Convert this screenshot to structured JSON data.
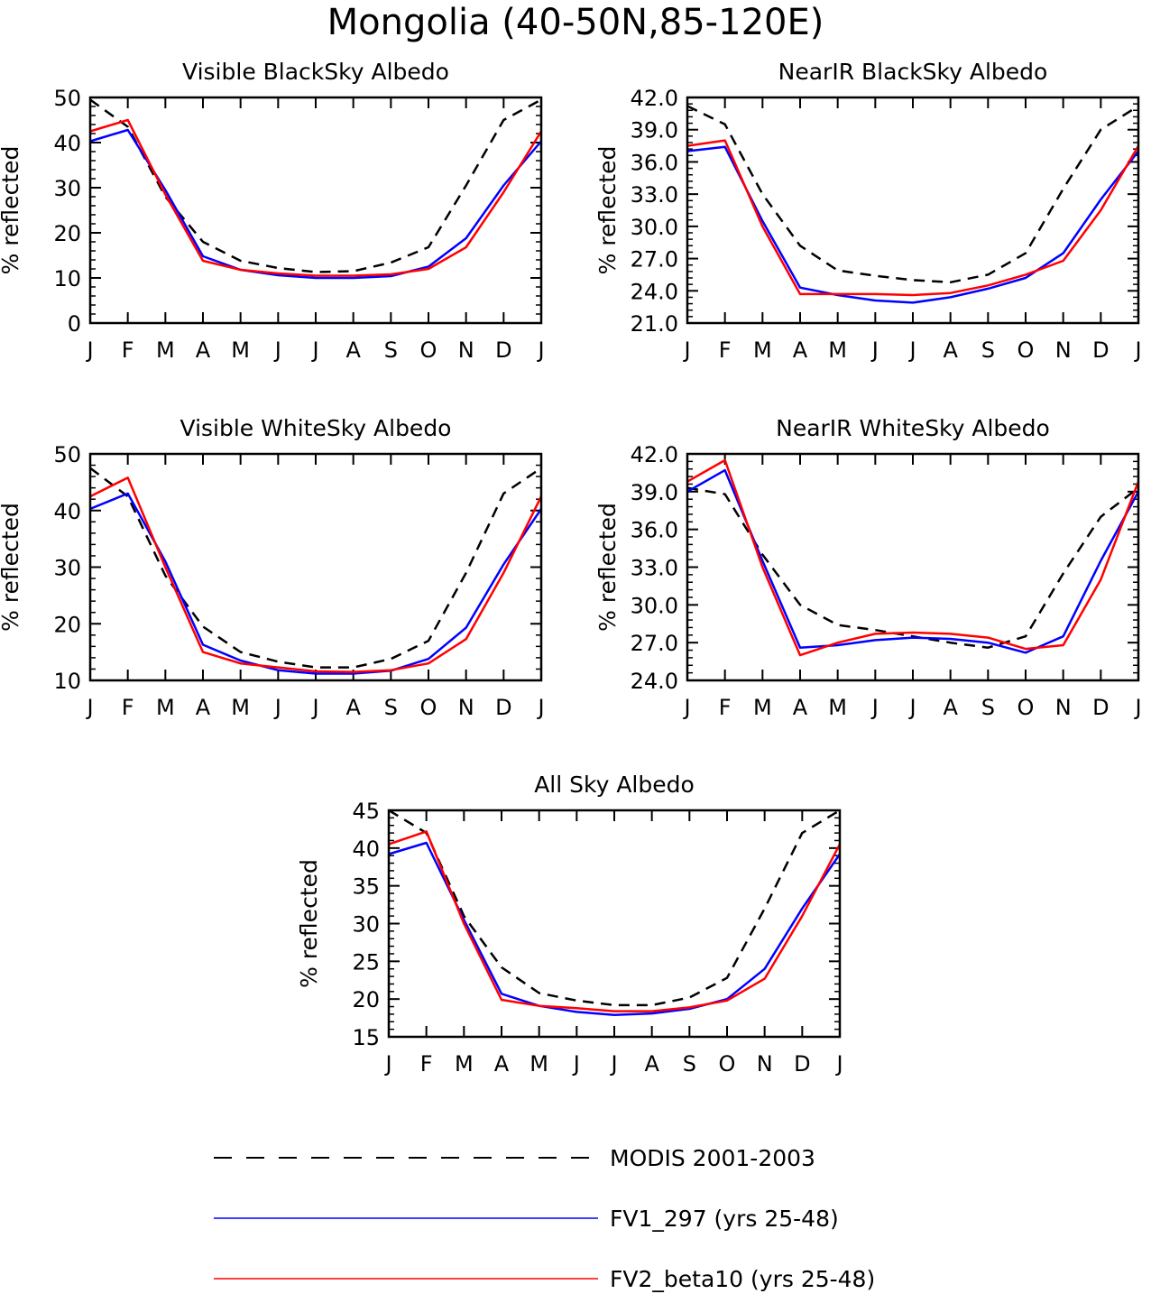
{
  "title": "Mongolia (40-50N,85-120E)",
  "legend": [
    {
      "label": "MODIS 2001-2003",
      "color": "#000000",
      "dash": true
    },
    {
      "label": "FV1_297 (yrs 25-48)",
      "color": "#0000ff",
      "dash": false
    },
    {
      "label": "FV2_beta10 (yrs 25-48)",
      "color": "#ff0000",
      "dash": false
    }
  ],
  "chart_data": [
    {
      "type": "line",
      "title": "Visible BlackSky Albedo",
      "ylabel": "% reflected",
      "categories": [
        "J",
        "F",
        "M",
        "A",
        "M",
        "J",
        "J",
        "A",
        "S",
        "O",
        "N",
        "D",
        "J"
      ],
      "ylim": [
        0,
        50
      ],
      "yticks": [
        "0",
        "10",
        "20",
        "30",
        "40",
        "50"
      ],
      "series": [
        {
          "name": "MODIS 2001-2003",
          "color": "#000000",
          "dash": true,
          "values": [
            49.5,
            43.5,
            28.0,
            18.0,
            13.8,
            12.2,
            11.3,
            11.5,
            13.4,
            16.8,
            30.5,
            45.0,
            49.5
          ]
        },
        {
          "name": "FV1_297 (yrs 25-48)",
          "color": "#0000ff",
          "dash": false,
          "values": [
            40.3,
            42.8,
            29.5,
            14.8,
            11.8,
            10.6,
            10.0,
            10.0,
            10.4,
            12.5,
            18.8,
            30.5,
            40.3
          ]
        },
        {
          "name": "FV2_beta10 (yrs 25-48)",
          "color": "#ff0000",
          "dash": false,
          "values": [
            42.5,
            45.0,
            28.5,
            13.8,
            11.8,
            11.0,
            10.5,
            10.5,
            10.8,
            12.0,
            16.8,
            29.0,
            42.5
          ]
        }
      ]
    },
    {
      "type": "line",
      "title": "NearIR BlackSky Albedo",
      "ylabel": "% reflected",
      "categories": [
        "J",
        "F",
        "M",
        "A",
        "M",
        "J",
        "J",
        "A",
        "S",
        "O",
        "N",
        "D",
        "J"
      ],
      "ylim": [
        21,
        42
      ],
      "yticks": [
        "21.0",
        "24.0",
        "27.0",
        "30.0",
        "33.0",
        "36.0",
        "39.0",
        "42.0"
      ],
      "series": [
        {
          "name": "MODIS 2001-2003",
          "color": "#000000",
          "dash": true,
          "values": [
            41.2,
            39.5,
            33.0,
            28.2,
            25.9,
            25.4,
            25.0,
            24.8,
            25.5,
            27.5,
            33.5,
            39.0,
            41.2
          ]
        },
        {
          "name": "FV1_297 (yrs 25-48)",
          "color": "#0000ff",
          "dash": false,
          "values": [
            37.0,
            37.4,
            30.5,
            24.3,
            23.6,
            23.1,
            22.9,
            23.4,
            24.2,
            25.2,
            27.5,
            32.5,
            37.0
          ]
        },
        {
          "name": "FV2_beta10 (yrs 25-48)",
          "color": "#ff0000",
          "dash": false,
          "values": [
            37.5,
            38.0,
            30.0,
            23.7,
            23.7,
            23.7,
            23.6,
            23.8,
            24.5,
            25.5,
            26.8,
            31.5,
            37.5
          ]
        }
      ]
    },
    {
      "type": "line",
      "title": "Visible WhiteSky Albedo",
      "ylabel": "% reflected",
      "categories": [
        "J",
        "F",
        "M",
        "A",
        "M",
        "J",
        "J",
        "A",
        "S",
        "O",
        "N",
        "D",
        "J"
      ],
      "ylim": [
        10,
        50
      ],
      "yticks": [
        "10",
        "20",
        "30",
        "40",
        "50"
      ],
      "series": [
        {
          "name": "MODIS 2001-2003",
          "color": "#000000",
          "dash": true,
          "values": [
            47.5,
            42.5,
            28.5,
            19.5,
            15.0,
            13.3,
            12.3,
            12.3,
            13.8,
            17.0,
            29.0,
            43.0,
            47.5
          ]
        },
        {
          "name": "FV1_297 (yrs 25-48)",
          "color": "#0000ff",
          "dash": false,
          "values": [
            40.3,
            43.0,
            31.0,
            16.3,
            13.5,
            11.8,
            11.2,
            11.2,
            11.7,
            13.8,
            19.3,
            30.5,
            40.3
          ]
        },
        {
          "name": "FV2_beta10 (yrs 25-48)",
          "color": "#ff0000",
          "dash": false,
          "values": [
            42.5,
            45.8,
            30.0,
            15.0,
            13.0,
            12.3,
            11.6,
            11.5,
            11.8,
            13.0,
            17.3,
            29.0,
            42.5
          ]
        }
      ]
    },
    {
      "type": "line",
      "title": "NearIR WhiteSky Albedo",
      "ylabel": "% reflected",
      "categories": [
        "J",
        "F",
        "M",
        "A",
        "M",
        "J",
        "J",
        "A",
        "S",
        "O",
        "N",
        "D",
        "J"
      ],
      "ylim": [
        24,
        42
      ],
      "yticks": [
        "24.0",
        "27.0",
        "30.0",
        "33.0",
        "36.0",
        "39.0",
        "42.0"
      ],
      "series": [
        {
          "name": "MODIS 2001-2003",
          "color": "#000000",
          "dash": true,
          "values": [
            39.3,
            38.8,
            34.0,
            30.0,
            28.4,
            28.0,
            27.5,
            27.0,
            26.6,
            27.5,
            32.5,
            37.0,
            39.3
          ]
        },
        {
          "name": "FV1_297 (yrs 25-48)",
          "color": "#0000ff",
          "dash": false,
          "values": [
            39.0,
            40.7,
            33.5,
            26.6,
            26.8,
            27.2,
            27.4,
            27.3,
            27.0,
            26.2,
            27.5,
            33.5,
            39.0
          ]
        },
        {
          "name": "FV2_beta10 (yrs 25-48)",
          "color": "#ff0000",
          "dash": false,
          "values": [
            39.8,
            41.5,
            33.0,
            26.0,
            27.0,
            27.7,
            27.8,
            27.7,
            27.4,
            26.5,
            26.8,
            32.0,
            39.8
          ]
        }
      ]
    },
    {
      "type": "line",
      "title": "All Sky Albedo",
      "ylabel": "% reflected",
      "categories": [
        "J",
        "F",
        "M",
        "A",
        "M",
        "J",
        "J",
        "A",
        "S",
        "O",
        "N",
        "D",
        "J"
      ],
      "ylim": [
        15,
        45
      ],
      "yticks": [
        "15",
        "20",
        "25",
        "30",
        "35",
        "40",
        "45"
      ],
      "series": [
        {
          "name": "MODIS 2001-2003",
          "color": "#000000",
          "dash": true,
          "values": [
            45.0,
            42.0,
            31.0,
            24.2,
            20.8,
            19.8,
            19.2,
            19.2,
            20.2,
            22.8,
            32.0,
            42.0,
            45.0
          ]
        },
        {
          "name": "FV1_297 (yrs 25-48)",
          "color": "#0000ff",
          "dash": false,
          "values": [
            39.2,
            40.7,
            30.5,
            20.7,
            19.1,
            18.3,
            17.9,
            18.1,
            18.7,
            20.0,
            24.0,
            32.0,
            39.2
          ]
        },
        {
          "name": "FV2_beta10 (yrs 25-48)",
          "color": "#ff0000",
          "dash": false,
          "values": [
            40.5,
            42.2,
            30.0,
            19.9,
            19.1,
            18.8,
            18.4,
            18.4,
            18.9,
            19.8,
            22.7,
            31.0,
            40.5
          ]
        }
      ]
    }
  ]
}
